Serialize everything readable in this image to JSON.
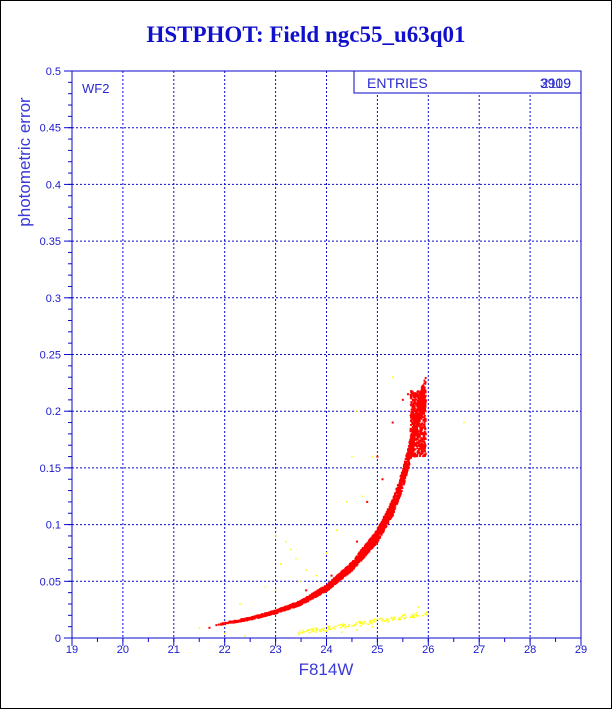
{
  "window": {
    "title": "HSTPHOT: Field ngc55_u63q01"
  },
  "stats_box": {
    "label": "ENTRIES",
    "value_primary": "3909",
    "value_overlap": "2119"
  },
  "panel_label": "WF2",
  "colors": {
    "frame_blue": "#0a0acc",
    "grid_blue": "#0a0ad0",
    "title_blue": "#1010cc",
    "primary_points": "#ff0000",
    "secondary_points": "#ffff00"
  },
  "chart_data": {
    "type": "scatter",
    "title": "HSTPHOT: Field ngc55_u63q01",
    "xlabel": "F814W",
    "ylabel": "photometric error",
    "xlim": [
      19,
      29
    ],
    "ylim": [
      0,
      0.5
    ],
    "x_ticks": [
      "19",
      "20",
      "21",
      "22",
      "23",
      "24",
      "25",
      "26",
      "27",
      "28",
      "29"
    ],
    "y_ticks": [
      "0",
      "0.05",
      "0.1",
      "0.15",
      "0.2",
      "0.25",
      "0.3",
      "0.35",
      "0.4",
      "0.45",
      "0.5"
    ],
    "grid": true,
    "series": [
      {
        "color": "#ff0000",
        "trend": [
          [
            21.8,
            0.011
          ],
          [
            22.0,
            0.013
          ],
          [
            22.5,
            0.017
          ],
          [
            23.0,
            0.023
          ],
          [
            23.5,
            0.031
          ],
          [
            24.0,
            0.044
          ],
          [
            24.5,
            0.063
          ],
          [
            25.0,
            0.09
          ],
          [
            25.3,
            0.115
          ],
          [
            25.5,
            0.14
          ],
          [
            25.7,
            0.175
          ],
          [
            25.8,
            0.2
          ],
          [
            25.95,
            0.218
          ]
        ],
        "scatter": [
          [
            21.7,
            0.009
          ],
          [
            22.8,
            0.02
          ],
          [
            23.2,
            0.025
          ],
          [
            23.6,
            0.042
          ],
          [
            24.1,
            0.055
          ],
          [
            24.6,
            0.085
          ],
          [
            24.8,
            0.12
          ],
          [
            25.1,
            0.14
          ],
          [
            25.0,
            0.16
          ],
          [
            25.3,
            0.19
          ],
          [
            25.5,
            0.21
          ],
          [
            25.6,
            0.215
          ]
        ]
      },
      {
        "color": "#ffff00",
        "points": [
          [
            23.0,
            0.09
          ],
          [
            23.2,
            0.085
          ],
          [
            23.4,
            0.07
          ],
          [
            23.1,
            0.065
          ],
          [
            23.3,
            0.078
          ],
          [
            23.6,
            0.06
          ],
          [
            23.8,
            0.055
          ],
          [
            24.0,
            0.075
          ],
          [
            24.2,
            0.095
          ],
          [
            23.5,
            0.05
          ],
          [
            22.8,
            0.045
          ],
          [
            23.0,
            0.042
          ],
          [
            24.4,
            0.12
          ],
          [
            24.6,
            0.2
          ],
          [
            24.9,
            0.16
          ],
          [
            24.3,
            0.005
          ],
          [
            24.6,
            0.007
          ],
          [
            24.9,
            0.01
          ],
          [
            25.2,
            0.014
          ],
          [
            25.5,
            0.02
          ],
          [
            25.8,
            0.027
          ],
          [
            26.3,
            0.15
          ],
          [
            26.7,
            0.19
          ],
          [
            22.3,
            0.03
          ],
          [
            21.5,
            0.009
          ],
          [
            22.0,
            0.004
          ],
          [
            22.4,
            0.002
          ],
          [
            23.8,
            0.008
          ],
          [
            24.0,
            0.006
          ],
          [
            24.5,
            0.16
          ],
          [
            24.7,
            0.125
          ],
          [
            25.3,
            0.23
          ]
        ]
      }
    ]
  }
}
